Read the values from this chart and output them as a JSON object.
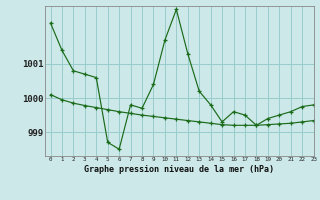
{
  "title": "Graphe pression niveau de la mer (hPa)",
  "background_color": "#cce8e8",
  "grid_color": "#99cccc",
  "line_color": "#1a6b1a",
  "xlim": [
    -0.5,
    23
  ],
  "ylim": [
    998.3,
    1002.7
  ],
  "yticks": [
    999,
    1000,
    1001
  ],
  "xticks": [
    0,
    1,
    2,
    3,
    4,
    5,
    6,
    7,
    8,
    9,
    10,
    11,
    12,
    13,
    14,
    15,
    16,
    17,
    18,
    19,
    20,
    21,
    22,
    23
  ],
  "hours": [
    0,
    1,
    2,
    3,
    4,
    5,
    6,
    7,
    8,
    9,
    10,
    11,
    12,
    13,
    14,
    15,
    16,
    17,
    18,
    19,
    20,
    21,
    22,
    23
  ],
  "pressure": [
    1002.2,
    1001.4,
    1000.8,
    1000.7,
    1000.6,
    998.7,
    998.5,
    999.8,
    999.7,
    1000.4,
    1001.7,
    1002.6,
    1001.3,
    1000.2,
    999.8,
    999.3,
    999.6,
    999.5,
    999.2,
    999.4,
    999.5,
    999.6,
    999.75,
    999.8
  ],
  "trend": [
    1000.1,
    999.95,
    999.85,
    999.78,
    999.72,
    999.66,
    999.6,
    999.55,
    999.5,
    999.46,
    999.42,
    999.38,
    999.34,
    999.3,
    999.26,
    999.22,
    999.2,
    999.2,
    999.2,
    999.22,
    999.24,
    999.26,
    999.3,
    999.34
  ]
}
